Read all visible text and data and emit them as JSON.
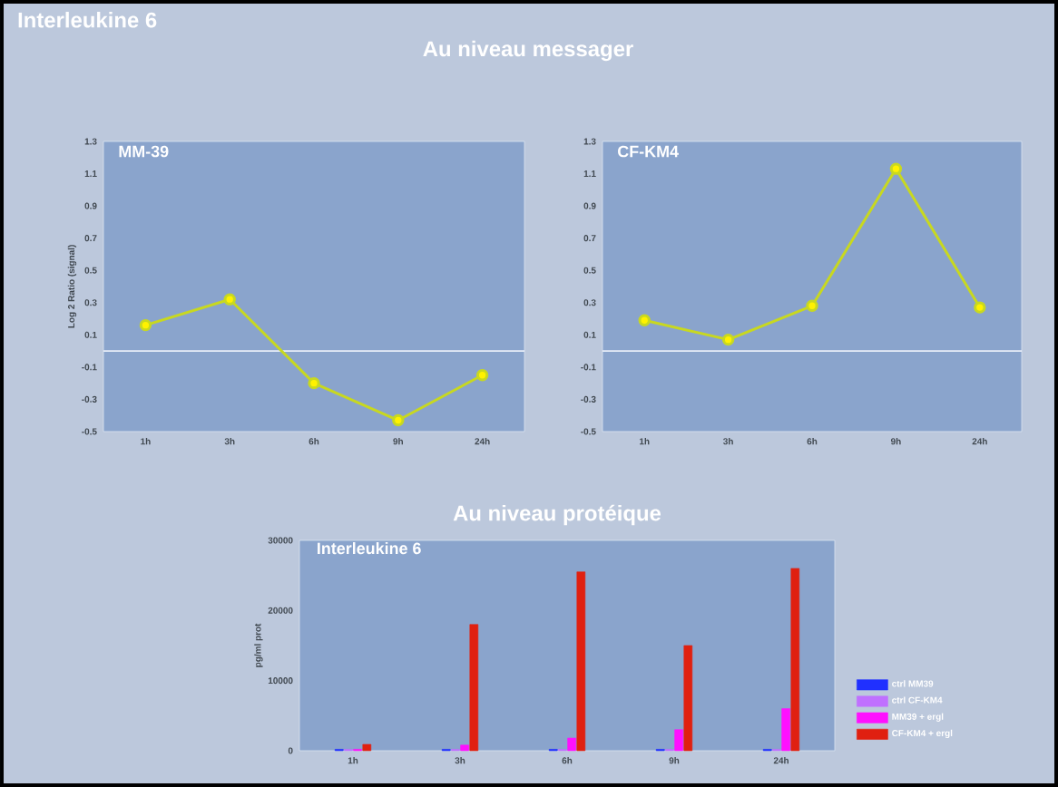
{
  "chart_data": [
    {
      "type": "line",
      "title": "MM-39",
      "annotations": [
        "Interleukine 6",
        "Au niveau messager"
      ],
      "ylabel": "Log 2 Ratio (signal)",
      "categories": [
        "1h",
        "3h",
        "6h",
        "9h",
        "24h"
      ],
      "series": [
        {
          "color": "#c8d820",
          "values": [
            0.16,
            0.32,
            -0.2,
            -0.43,
            -0.15
          ]
        }
      ],
      "ylim": [
        -0.5,
        1.3
      ],
      "yticks": [
        -0.5,
        -0.3,
        -0.1,
        0.1,
        0.3,
        0.5,
        0.7,
        0.9,
        1.1,
        1.3
      ],
      "marker": "circle",
      "line_style": "solid",
      "ref_lines": [
        {
          "axis": "y",
          "value": 0,
          "color": "#e8eef8"
        }
      ]
    },
    {
      "type": "line",
      "title": "CF-KM4",
      "categories": [
        "1h",
        "3h",
        "6h",
        "9h",
        "24h"
      ],
      "series": [
        {
          "color": "#c8d820",
          "values": [
            0.19,
            0.07,
            0.28,
            1.13,
            0.27
          ]
        }
      ],
      "ylim": [
        -0.5,
        1.3
      ],
      "yticks": [
        -0.5,
        -0.3,
        -0.1,
        0.1,
        0.3,
        0.5,
        0.7,
        0.9,
        1.1,
        1.3
      ],
      "marker": "circle",
      "line_style": "solid",
      "ref_lines": [
        {
          "axis": "y",
          "value": 0,
          "color": "#e8eef8"
        }
      ]
    },
    {
      "type": "bar",
      "title": "Interleukine 6",
      "subtitle": "Au niveau protéique",
      "ylabel": "pg/ml prot",
      "categories": [
        "1h",
        "3h",
        "6h",
        "9h",
        "24h"
      ],
      "series": [
        {
          "name": "ctrl MM39",
          "color": "#2030ff",
          "values": [
            200,
            200,
            200,
            200,
            200
          ]
        },
        {
          "name": "ctrl CF-KM4",
          "color": "#c070ff",
          "values": [
            200,
            200,
            200,
            200,
            200
          ]
        },
        {
          "name": "MM39 + ergl",
          "color": "#ff10ff",
          "values": [
            200,
            800,
            1800,
            3000,
            6000
          ]
        },
        {
          "name": "CF-KM4 + ergl",
          "color": "#e02010",
          "values": [
            900,
            18000,
            25500,
            15000,
            26000
          ]
        }
      ],
      "ylim": [
        0,
        30000
      ],
      "yticks": [
        0,
        10000,
        20000,
        30000
      ],
      "legend": "right"
    }
  ]
}
